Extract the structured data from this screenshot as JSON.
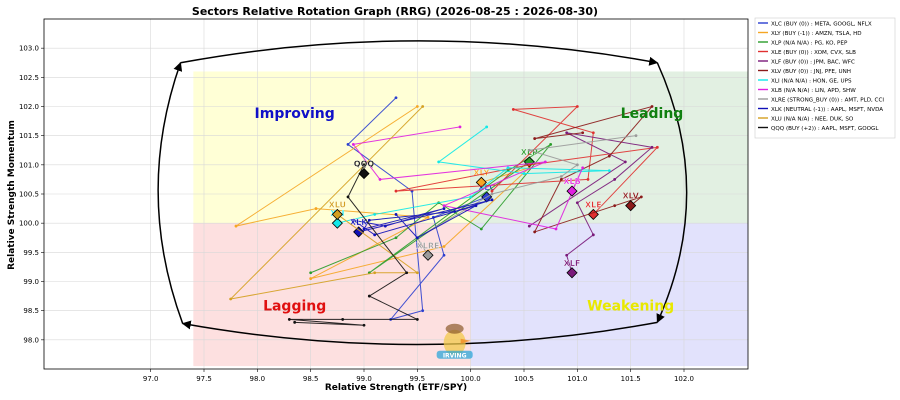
{
  "chart_data": {
    "type": "scatter",
    "title": "Sectors Relative Rotation Graph (RRG) (2026-08-25 : 2026-08-30)",
    "xlabel": "Relative Strength (ETF/SPY)",
    "ylabel": "Relative Strength Momentum",
    "xlim": [
      96.0,
      102.6
    ],
    "ylim": [
      97.5,
      103.5
    ],
    "xticks": [
      97.0,
      97.5,
      98.0,
      98.5,
      99.0,
      99.5,
      100.0,
      100.5,
      101.0,
      101.5,
      102.0
    ],
    "yticks": [
      98.0,
      98.5,
      99.0,
      99.5,
      100.0,
      100.5,
      101.0,
      101.5,
      102.0,
      102.5,
      103.0
    ],
    "grid": true,
    "legend_position": "right",
    "center": [
      100.0,
      100.0
    ],
    "quadrants": [
      {
        "name": "Improving",
        "color": "#1010c8",
        "bg": "#ffffd6"
      },
      {
        "name": "Leading",
        "color": "#108010",
        "bg": "#e2f0e2"
      },
      {
        "name": "Lagging",
        "color": "#e01010",
        "bg": "#fde0e0"
      },
      {
        "name": "Weakening",
        "color": "#e8e800",
        "bg": "#e2e2fc"
      }
    ],
    "series": [
      {
        "name": "XLC (BUY (0)) : META, GOOGL, NFLX",
        "label": "XLC",
        "color": "#2b3fcf",
        "x": [
          99.3,
          98.85,
          99.45,
          99.55,
          99.25,
          99.75,
          99.65,
          100.15
        ],
        "y": [
          102.15,
          101.35,
          100.55,
          98.5,
          98.35,
          99.45,
          100.1,
          100.45
        ]
      },
      {
        "name": "XLY (BUY (-1)) : AMZN, TSLA, HD",
        "label": "XLY",
        "color": "#f5a623",
        "x": [
          99.5,
          97.8,
          98.55,
          99.6,
          98.5,
          99.75,
          100.55,
          100.1
        ],
        "y": [
          102.0,
          99.95,
          100.25,
          100.1,
          99.05,
          99.6,
          100.95,
          100.7
        ]
      },
      {
        "name": "XLP (N/A N/A) : PG, KO, PEP",
        "label": "XLP",
        "color": "#2a9d2a",
        "x": [
          98.5,
          99.3,
          99.7,
          100.1,
          100.75,
          100.35,
          99.05,
          100.55
        ],
        "y": [
          99.15,
          99.75,
          100.35,
          99.9,
          101.35,
          100.9,
          99.15,
          101.05
        ]
      },
      {
        "name": "XLE (BUY (0)) : XOM, CVX, SLB",
        "label": "XLE",
        "color": "#e03030",
        "x": [
          100.2,
          101.0,
          100.4,
          101.15,
          101.1,
          99.3,
          100.55,
          101.75,
          101.15
        ],
        "y": [
          100.55,
          102.0,
          101.95,
          101.55,
          100.75,
          100.55,
          101.0,
          101.3,
          100.15
        ]
      },
      {
        "name": "XLF (BUY (0)) : JPM, BAC, WFC",
        "label": "XLF",
        "color": "#7a1a7a",
        "x": [
          100.55,
          101.45,
          100.9,
          101.7,
          101.35,
          101.0,
          101.15,
          100.9,
          100.95
        ],
        "y": [
          99.95,
          101.05,
          101.55,
          101.3,
          100.75,
          100.35,
          99.8,
          99.45,
          99.15
        ]
      },
      {
        "name": "XLV (BUY (0)) : JNJ, PFE, UNH",
        "label": "XLV",
        "color": "#8b1a1a",
        "x": [
          101.05,
          100.6,
          101.7,
          101.3,
          100.85,
          100.6,
          101.35,
          101.6,
          101.5
        ],
        "y": [
          101.55,
          101.45,
          102.0,
          101.15,
          100.75,
          99.85,
          100.3,
          100.45,
          100.3
        ]
      },
      {
        "name": "XLI (N/A N/A) : HON, GE, UPS",
        "label": "XLI",
        "color": "#11e8e8",
        "x": [
          100.15,
          99.7,
          100.5,
          101.3,
          100.35,
          100.0,
          99.1,
          98.75
        ],
        "y": [
          101.65,
          101.05,
          100.85,
          100.9,
          100.95,
          100.45,
          100.15,
          100.0
        ]
      },
      {
        "name": "XLB (N/A N/A) : LIN, APD, SHW",
        "label": "XLB",
        "color": "#e020e0",
        "x": [
          99.9,
          98.9,
          99.15,
          100.7,
          99.75,
          100.8,
          101.05,
          100.95
        ],
        "y": [
          101.65,
          101.35,
          100.75,
          101.05,
          100.3,
          99.9,
          100.95,
          100.55
        ]
      },
      {
        "name": "XLRE (STRONG_BUY (0)) : AMT, PLD, CCI",
        "label": "XLRE",
        "color": "#9a9a9a",
        "x": [
          101.55,
          100.55,
          101.0,
          100.85,
          100.2,
          99.5,
          99.6
        ],
        "y": [
          101.5,
          101.25,
          101.0,
          100.8,
          100.5,
          99.75,
          99.45
        ]
      },
      {
        "name": "XLK (NEUTRAL (-1)) : AAPL, MSFT, NVDA",
        "label": "XLK",
        "color": "#1010b8",
        "x": [
          99.3,
          99.5,
          100.05,
          99.1,
          98.9,
          99.2,
          99.75,
          99.0,
          99.05,
          99.85,
          100.2,
          98.95
        ],
        "y": [
          100.15,
          99.75,
          100.3,
          99.8,
          100.05,
          99.95,
          100.25,
          99.9,
          100.05,
          100.2,
          100.4,
          99.85
        ]
      },
      {
        "name": "XLU (N/A N/A) : NEE, DUK, SO",
        "label": "XLU",
        "color": "#d4a020",
        "x": [
          99.55,
          97.75,
          99.1,
          99.5,
          98.75
        ],
        "y": [
          102.0,
          98.7,
          99.15,
          99.15,
          100.15
        ]
      },
      {
        "name": "QQQ (BUY (+2)) : AAPL, MSFT, GOOGL",
        "label": "QQQ",
        "color": "#111111",
        "x": [
          98.35,
          99.0,
          98.3,
          98.8,
          99.5,
          99.05,
          99.4,
          98.85,
          99.0,
          99.0
        ],
        "y": [
          98.3,
          98.25,
          98.35,
          98.35,
          98.35,
          98.75,
          99.15,
          100.45,
          101.0,
          100.85
        ]
      }
    ]
  },
  "watermark": {
    "text": "IRVING"
  }
}
